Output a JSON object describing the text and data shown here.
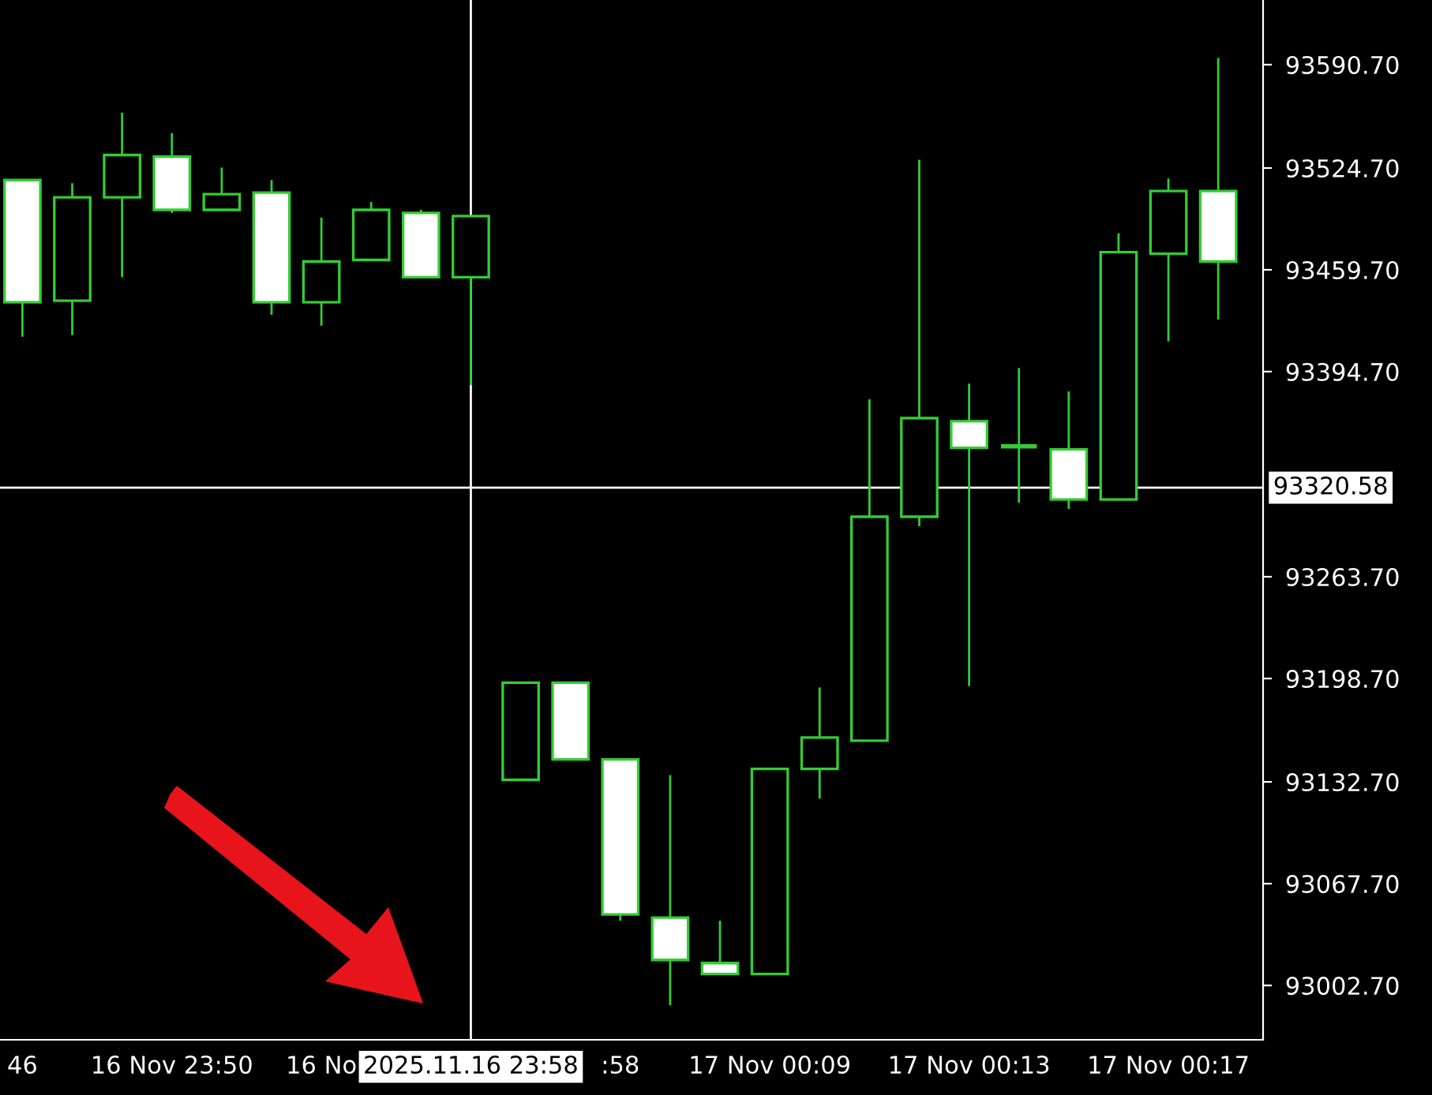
{
  "chart_data": {
    "type": "candlestick",
    "categories": [
      "46",
      null,
      null,
      "16 Nov 23:50",
      null,
      null,
      "16 No",
      null,
      null,
      "2025.11.16 23:58",
      null,
      null,
      ":58",
      null,
      null,
      "17 Nov 00:09",
      null,
      null,
      null,
      "17 Nov 00:13",
      null,
      null,
      null,
      "17 Nov 00:17",
      null
    ],
    "series": [
      {
        "color": "#33cc33",
        "ohlc": [
          [
            93517,
            93517,
            93417,
            93439
          ],
          [
            93440,
            93515,
            93418,
            93506
          ],
          [
            93506,
            93560,
            93455,
            93533
          ],
          [
            93532,
            93547,
            93496,
            93498
          ],
          [
            93498,
            93525,
            93498,
            93508
          ],
          [
            93509,
            93517,
            93431,
            93439
          ],
          [
            93439,
            93493,
            93424,
            93465
          ],
          [
            93466,
            93503,
            93466,
            93498
          ],
          [
            93496,
            93498,
            93455,
            93455
          ],
          [
            93455,
            93494,
            93386,
            93494
          ],
          [
            93134,
            93196,
            93134,
            93196
          ],
          [
            93196,
            93196,
            93147,
            93147
          ],
          [
            93147,
            93147,
            93044,
            93048
          ],
          [
            93046,
            93137,
            92990,
            93019
          ],
          [
            93017,
            93044,
            93010,
            93010
          ],
          [
            93010,
            93141,
            93010,
            93141
          ],
          [
            93141,
            93193,
            93122,
            93161
          ],
          [
            93159,
            93377,
            93159,
            93302
          ],
          [
            93302,
            93530,
            93296,
            93365
          ],
          [
            93363,
            93387,
            93194,
            93346
          ],
          [
            93347,
            93397,
            93311,
            93347
          ],
          [
            93345,
            93382,
            93307,
            93313
          ],
          [
            93313,
            93483,
            93313,
            93471
          ],
          [
            93470,
            93518,
            93414,
            93510
          ],
          [
            93510,
            93595,
            93428,
            93465
          ]
        ]
      }
    ],
    "ylim": [
      92968,
      93632
    ],
    "yticks": [
      {
        "value": 93590.7,
        "label": "93590.70"
      },
      {
        "value": 93524.7,
        "label": "93524.70"
      },
      {
        "value": 93459.7,
        "label": "93459.70"
      },
      {
        "value": 93394.7,
        "label": "93394.70"
      },
      {
        "value": 93263.7,
        "label": "93263.70"
      },
      {
        "value": 93198.7,
        "label": "93198.70"
      },
      {
        "value": 93132.7,
        "label": "93132.70"
      },
      {
        "value": 93067.7,
        "label": "93067.70"
      },
      {
        "value": 93002.7,
        "label": "93002.70"
      }
    ],
    "ref_lines": [
      {
        "axis": "y",
        "value": 93320.58,
        "label": "93320.58",
        "color": "#ffffff",
        "line_style": "solid"
      },
      {
        "axis": "x",
        "value": "2025.11.16 23:58",
        "color": "#ffffff",
        "line_style": "solid"
      }
    ],
    "grid": false
  }
}
